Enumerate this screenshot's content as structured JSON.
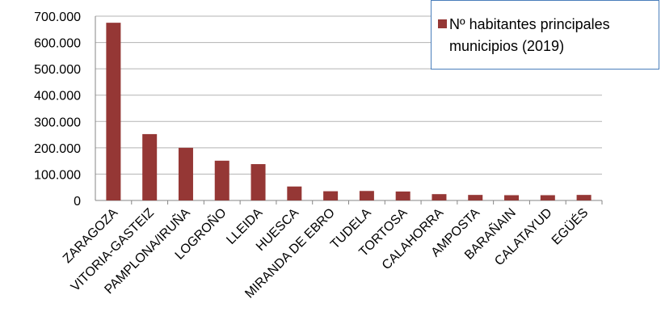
{
  "chart_data": {
    "type": "bar",
    "categories": [
      "ZARAGOZA",
      "VITORIA-GASTEIZ",
      "PAMPLONA/IRUÑA",
      "LOGROÑO",
      "LLEIDA",
      "HUESCA",
      "MIRANDA DE EBRO",
      "TUDELA",
      "TORTOSA",
      "CALAHORRA",
      "AMPOSTA",
      "BARAÑAIN",
      "CALATAYUD",
      "EGÜÉS"
    ],
    "series": [
      {
        "name": "Nº habitantes principales municipios (2019)",
        "color": "#953735",
        "values": [
          675000,
          252000,
          200000,
          151000,
          138000,
          53000,
          35000,
          36000,
          34000,
          24000,
          21000,
          20000,
          20000,
          21000
        ]
      }
    ],
    "ylim": [
      0,
      700000
    ],
    "yticks": [
      0,
      {
        "value": 100000,
        "label": "100.000"
      },
      {
        "value": 200000,
        "label": "200.000"
      },
      {
        "value": 300000,
        "label": "300.000"
      },
      {
        "value": 400000,
        "label": "400.000"
      },
      {
        "value": 500000,
        "label": "500.000"
      },
      {
        "value": 600000,
        "label": "600.000"
      },
      {
        "value": 700000,
        "label": "700.000"
      }
    ],
    "grid": true,
    "legend": "top-right"
  }
}
